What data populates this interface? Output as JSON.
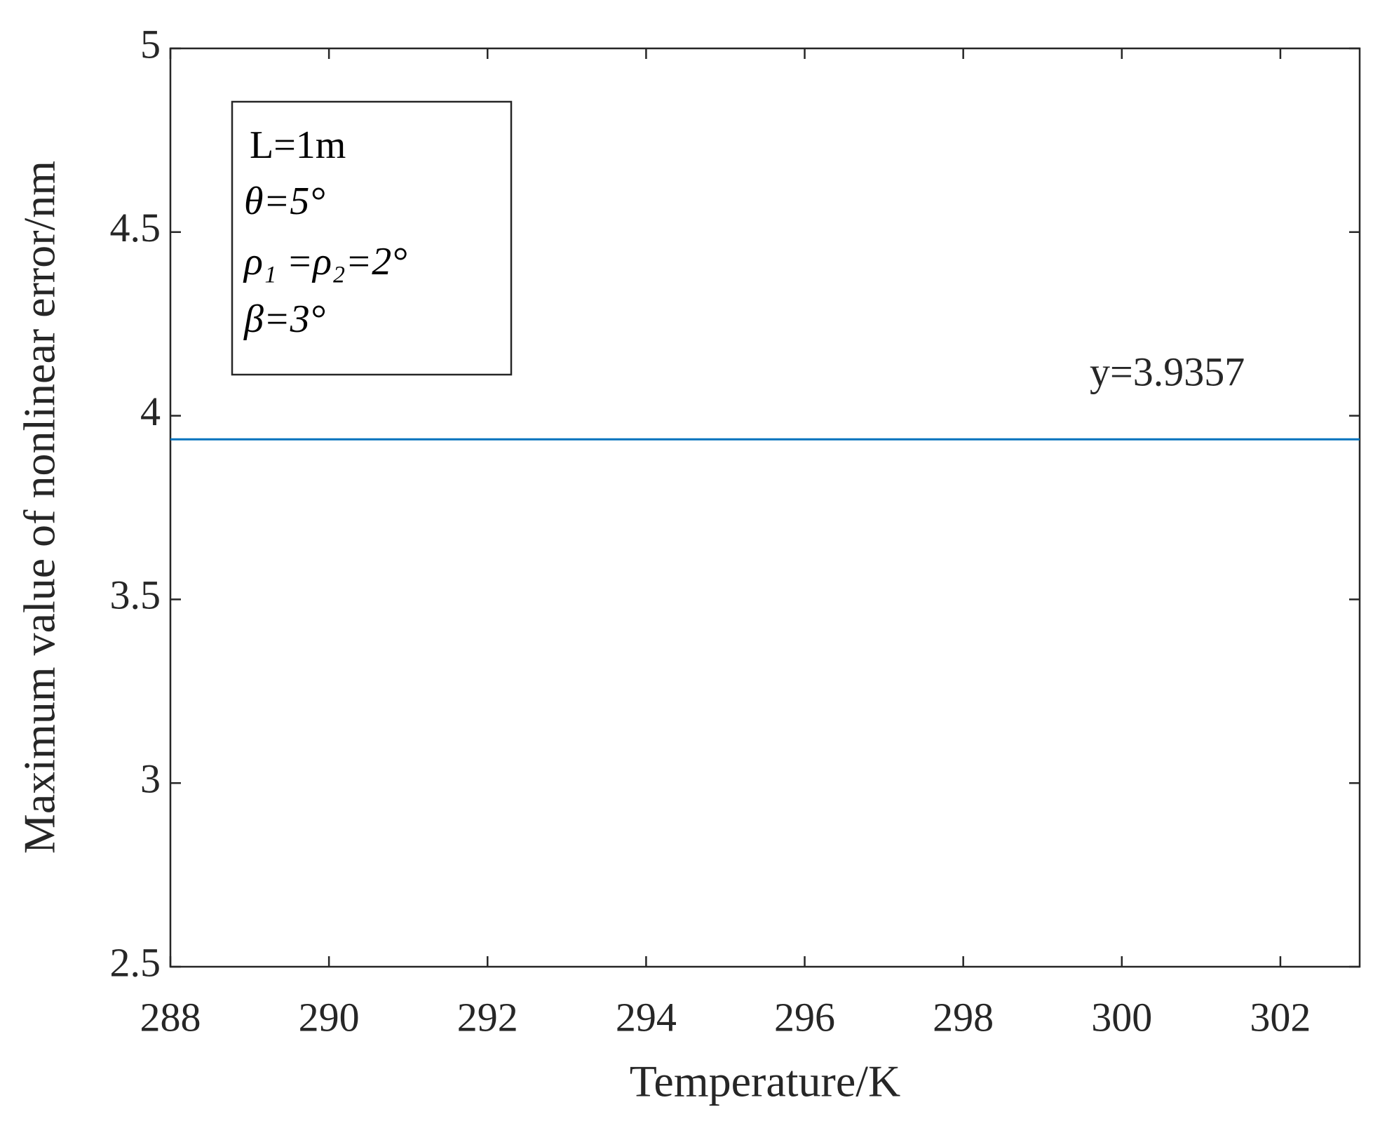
{
  "chart_data": {
    "type": "line",
    "xlabel": "Temperature/K",
    "ylabel": "Maximum value of nonlinear error/nm",
    "x": [
      288,
      303
    ],
    "series": [
      {
        "name": "y=3.9357",
        "color": "#0072bd",
        "values": [
          3.9357,
          3.9357
        ]
      }
    ],
    "xlim": [
      288,
      303
    ],
    "xticks": [
      288,
      290,
      292,
      294,
      296,
      298,
      300,
      302
    ],
    "ylim": [
      2.5,
      5
    ],
    "yticks": [
      2.5,
      3,
      3.5,
      4,
      4.5,
      5
    ],
    "grid": false,
    "annotations": [
      "L=1m",
      "θ=5°",
      "ρ₁ =ρ₂=2°",
      "β=3°"
    ]
  }
}
